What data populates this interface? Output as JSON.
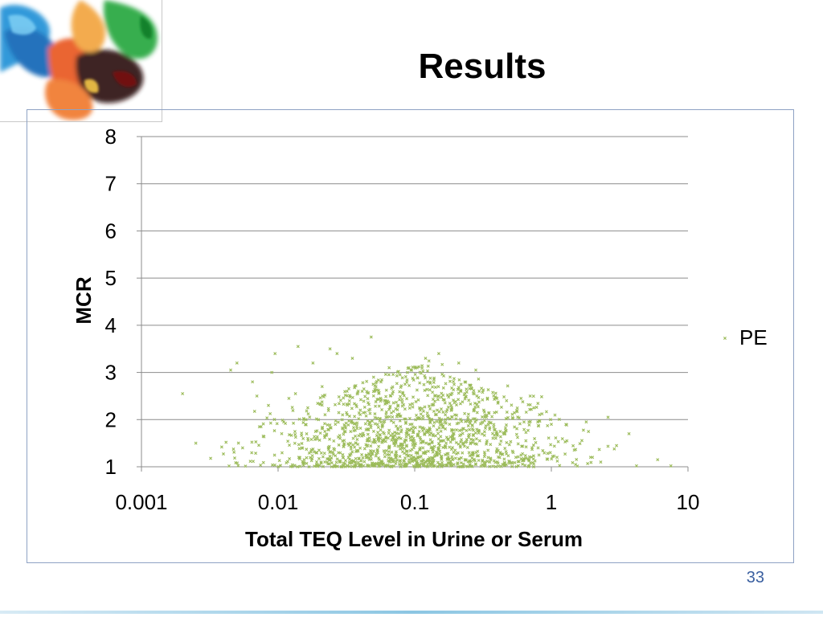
{
  "slide": {
    "title": "Results",
    "page_number": "33"
  },
  "colors": {
    "series": "#9bbb59",
    "grid": "#8c8c8c",
    "frame": "#8ea2c4",
    "page_number": "#3a5fa0"
  },
  "chart_data": {
    "type": "scatter",
    "title": "",
    "xlabel": "Total TEQ Level in Urine or Serum",
    "ylabel": "MCR",
    "x_scale": "log",
    "xlim": [
      0.001,
      10
    ],
    "ylim": [
      1,
      8
    ],
    "x_ticks": [
      "0.001",
      "0.01",
      "0.1",
      "1",
      "10"
    ],
    "y_ticks": [
      "1",
      "2",
      "3",
      "4",
      "5",
      "6",
      "7",
      "8"
    ],
    "grid": "horizontal",
    "legend": "right",
    "series": [
      {
        "name": "PE",
        "marker": "x",
        "color": "#9bbb59",
        "points": [
          [
            0.002,
            2.55
          ],
          [
            0.0025,
            1.5
          ],
          [
            0.0045,
            3.05
          ],
          [
            0.005,
            3.2
          ],
          [
            0.0055,
            1.4
          ],
          [
            0.0065,
            2.8
          ],
          [
            0.007,
            2.5
          ],
          [
            0.0075,
            1.85
          ],
          [
            0.0085,
            2.3
          ],
          [
            0.009,
            3.0
          ],
          [
            0.0095,
            3.4
          ],
          [
            0.011,
            1.95
          ],
          [
            0.012,
            2.45
          ],
          [
            0.014,
            3.55
          ],
          [
            0.016,
            2.0
          ],
          [
            0.018,
            3.2
          ],
          [
            0.019,
            1.3
          ],
          [
            0.021,
            2.7
          ],
          [
            0.024,
            3.5
          ],
          [
            0.027,
            3.4
          ],
          [
            0.03,
            1.2
          ],
          [
            0.032,
            2.6
          ],
          [
            0.035,
            3.3
          ],
          [
            0.037,
            1.5
          ],
          [
            0.04,
            2.2
          ],
          [
            0.045,
            1.8
          ],
          [
            0.048,
            3.75
          ],
          [
            0.05,
            2.9
          ],
          [
            0.055,
            1.15
          ],
          [
            0.06,
            2.4
          ],
          [
            0.065,
            3.1
          ],
          [
            0.075,
            1.6
          ],
          [
            0.085,
            2.75
          ],
          [
            0.095,
            3.05
          ],
          [
            0.11,
            1.4
          ],
          [
            0.12,
            3.3
          ],
          [
            0.14,
            2.5
          ],
          [
            0.15,
            3.4
          ],
          [
            0.18,
            1.9
          ],
          [
            0.21,
            3.2
          ],
          [
            0.25,
            1.3
          ],
          [
            0.28,
            3.05
          ],
          [
            0.32,
            2.2
          ],
          [
            0.36,
            1.15
          ],
          [
            0.4,
            2.45
          ],
          [
            0.45,
            1.7
          ],
          [
            0.55,
            1.2
          ],
          [
            0.6,
            2.45
          ],
          [
            0.7,
            2.5
          ],
          [
            0.8,
            1.4
          ],
          [
            1.0,
            1.9
          ],
          [
            1.1,
            1.2
          ],
          [
            1.3,
            1.55
          ],
          [
            1.8,
            1.95
          ],
          [
            2.0,
            1.2
          ],
          [
            2.3,
            1.1
          ],
          [
            2.6,
            2.05
          ],
          [
            3.0,
            1.45
          ],
          [
            3.7,
            1.7
          ],
          [
            4.2,
            1.02
          ],
          [
            6.0,
            1.15
          ],
          [
            7.5,
            1.02
          ]
        ]
      }
    ],
    "cloud": {
      "description": "dense cloud of PE points",
      "count": 1500,
      "x_center": 0.1,
      "x_spread_decades": 0.5,
      "y_floor": 1.0,
      "y_typical_max": 2.6
    }
  }
}
